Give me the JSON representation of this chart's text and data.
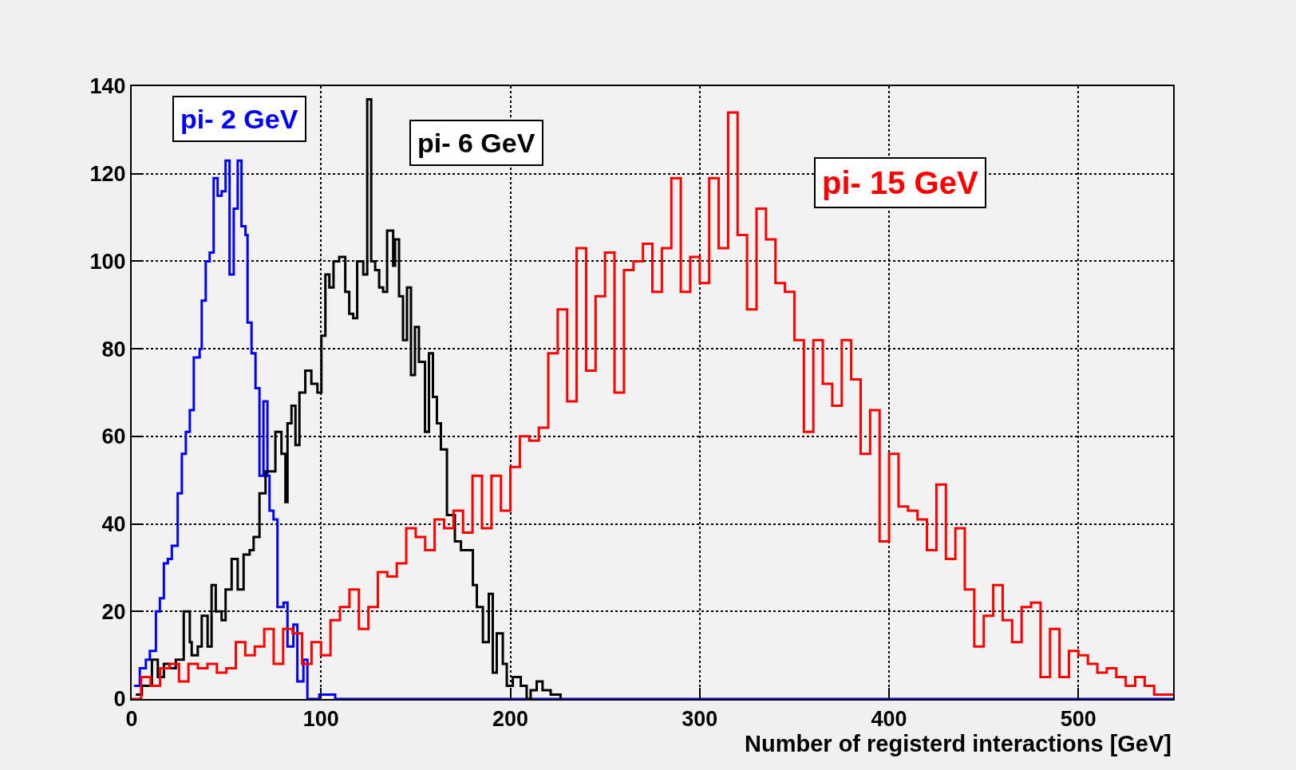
{
  "chart_data": {
    "type": "step",
    "xlabel": "Number of registerd interactions [GeV]",
    "xlim": [
      0,
      550
    ],
    "ylim": [
      0,
      140
    ],
    "xticks": [
      0,
      100,
      200,
      300,
      400,
      500
    ],
    "yticks": [
      0,
      20,
      40,
      60,
      80,
      100,
      120,
      140
    ],
    "grid": true,
    "legend": false,
    "series": [
      {
        "name": "pi- 2 GeV",
        "color": "#0000ff",
        "x": [
          1.2,
          4.3,
          7.5,
          9.6,
          12.8,
          14.9,
          17,
          19.1,
          21.2,
          24.3,
          26.5,
          28.6,
          30.7,
          32.8,
          35.9,
          37,
          39.1,
          41.2,
          43.3,
          45.4,
          47.5,
          49.6,
          51.7,
          53.9,
          56,
          58,
          60.1,
          61.2,
          63.3,
          65.4,
          67.5,
          69.6,
          71.7,
          72.8,
          74.9,
          77,
          80.2,
          82.3,
          85.4,
          87.5,
          90.7,
          92.8,
          99.1,
          103.3,
          107.5,
          550
        ],
        "values": [
          3,
          7,
          9,
          11,
          20,
          23,
          31,
          32,
          35,
          47,
          56,
          61,
          66,
          78,
          80,
          91,
          100,
          102,
          119,
          115,
          116,
          123,
          97,
          112,
          123,
          108,
          106,
          86,
          79,
          71,
          51,
          68,
          51,
          43,
          41,
          21,
          22,
          12,
          17,
          4,
          9,
          0,
          1,
          1,
          0,
          0
        ]
      },
      {
        "name": "pi- 6 GeV",
        "color": "#000000",
        "x": [
          2.2,
          5.4,
          10.7,
          13.8,
          17,
          20.1,
          23.3,
          27.5,
          30.7,
          31.7,
          34.9,
          37,
          40.1,
          42.2,
          44.4,
          47.5,
          49.6,
          52.8,
          56,
          59.1,
          62.3,
          64.4,
          67.5,
          70.7,
          73.8,
          75.9,
          79.1,
          81.2,
          82.3,
          84.4,
          86.5,
          88.6,
          91.7,
          94.9,
          98.1,
          100.2,
          102.3,
          104.4,
          106.6,
          109.6,
          112.8,
          114.9,
          117,
          119.1,
          122.3,
          124.4,
          126.5,
          128.6,
          130.7,
          132.8,
          134.9,
          138.1,
          139.1,
          141.2,
          143.3,
          145.4,
          147.5,
          149.6,
          151.7,
          154.9,
          157,
          159.1,
          161.2,
          163.3,
          166.5,
          170.7,
          173.9,
          177,
          180.2,
          182.3,
          185.5,
          188.6,
          190.7,
          192.8,
          196,
          198.1,
          201.3,
          205.5,
          208.6,
          210.7,
          213.9,
          217,
          221.3,
          226.5
        ],
        "values": [
          1,
          3,
          9,
          5,
          8,
          7,
          9,
          20,
          13,
          10,
          12,
          19,
          12,
          26,
          20,
          18,
          25,
          32,
          25,
          33,
          34,
          37,
          47,
          52,
          52,
          61,
          56,
          45,
          63,
          67,
          58,
          70,
          75,
          72,
          70,
          83,
          97,
          94,
          100,
          101,
          93,
          88,
          87,
          100,
          97,
          137,
          100,
          98,
          94,
          93,
          107,
          99,
          105,
          92,
          82,
          94,
          74,
          85,
          77,
          61,
          79,
          69,
          63,
          57,
          42,
          36,
          34,
          34,
          26,
          21,
          13,
          24,
          6,
          15,
          8,
          3,
          5,
          3,
          0,
          2,
          4,
          2,
          1,
          0
        ]
      },
      {
        "name": "pi- 15 GeV",
        "color": "#ff0000",
        "x": [
          0,
          5,
          10,
          15,
          20,
          25,
          30,
          35,
          40,
          45,
          50,
          55,
          60,
          65,
          70,
          75,
          80,
          85,
          90,
          95,
          100,
          105,
          110,
          115,
          120,
          125,
          130,
          135,
          140,
          145,
          150,
          155,
          160,
          165,
          170,
          175,
          180,
          185,
          190,
          195,
          200,
          205,
          210,
          215,
          220,
          225,
          230,
          235,
          240,
          245,
          250,
          255,
          260,
          265,
          270,
          275,
          280,
          285,
          290,
          295,
          300,
          305,
          310,
          315,
          320,
          325,
          330,
          335,
          340,
          345,
          350,
          355,
          360,
          365,
          370,
          375,
          380,
          385,
          390,
          395,
          400,
          405,
          410,
          415,
          420,
          425,
          430,
          435,
          440,
          445,
          450,
          455,
          460,
          465,
          470,
          475,
          480,
          485,
          490,
          495,
          500,
          505,
          510,
          515,
          520,
          525,
          530,
          535,
          540,
          545,
          550
        ],
        "values": [
          0,
          5,
          3,
          7,
          8,
          4,
          8,
          7,
          8,
          6,
          7,
          13,
          10,
          12,
          16,
          8,
          16,
          15,
          8,
          13,
          10,
          18,
          21,
          25,
          16,
          21,
          29,
          28,
          31,
          39,
          37,
          34,
          41,
          39,
          43,
          38,
          51,
          39,
          51,
          43,
          53,
          60,
          59,
          62,
          79,
          89,
          68,
          103,
          75,
          92,
          102,
          70,
          98,
          100,
          104,
          93,
          103,
          119,
          93,
          101,
          95,
          119,
          103,
          134,
          106,
          89,
          112,
          105,
          95,
          93,
          82,
          61,
          82,
          72,
          67,
          82,
          73,
          56,
          66,
          36,
          56,
          44,
          43,
          41,
          34,
          49,
          32,
          39,
          25,
          12,
          19,
          26,
          18,
          13,
          21,
          22,
          5,
          16,
          5,
          11,
          10,
          8,
          6,
          7,
          5,
          3,
          5,
          3,
          1,
          1,
          1
        ]
      }
    ]
  }
}
